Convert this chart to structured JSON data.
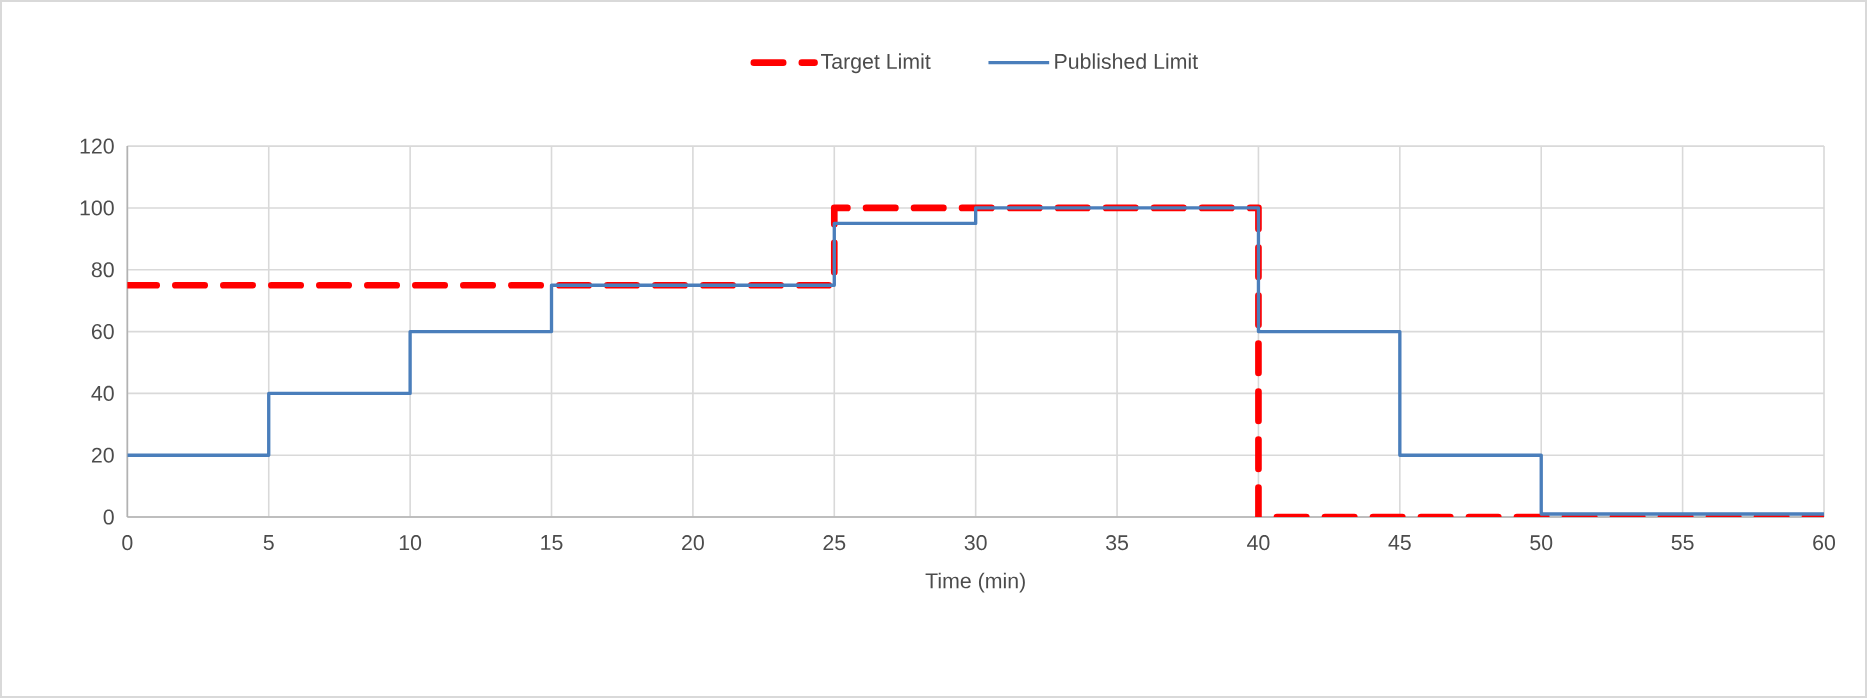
{
  "chart_data": {
    "type": "step",
    "xlabel": "Time (min)",
    "series": [
      {
        "name": "Target Limit",
        "color": "#ff0000",
        "line_style": "dashed",
        "x": [
          0,
          25,
          40,
          60
        ],
        "values": [
          75,
          100,
          0,
          0
        ]
      },
      {
        "name": "Published Limit",
        "color": "#4a7ebb",
        "line_style": "solid",
        "x": [
          0,
          5,
          10,
          15,
          25,
          30,
          40,
          45,
          50,
          60
        ],
        "values": [
          20,
          40,
          60,
          75,
          95,
          100,
          60,
          20,
          1,
          1
        ]
      }
    ],
    "xlim": [
      0,
      60
    ],
    "xticks": [
      0,
      5,
      10,
      15,
      20,
      25,
      30,
      35,
      40,
      45,
      50,
      55,
      60
    ],
    "ylim": [
      0,
      120
    ],
    "yticks": [
      0,
      20,
      40,
      60,
      80,
      100,
      120
    ],
    "grid": true,
    "legend": "top",
    "marker": "none"
  }
}
